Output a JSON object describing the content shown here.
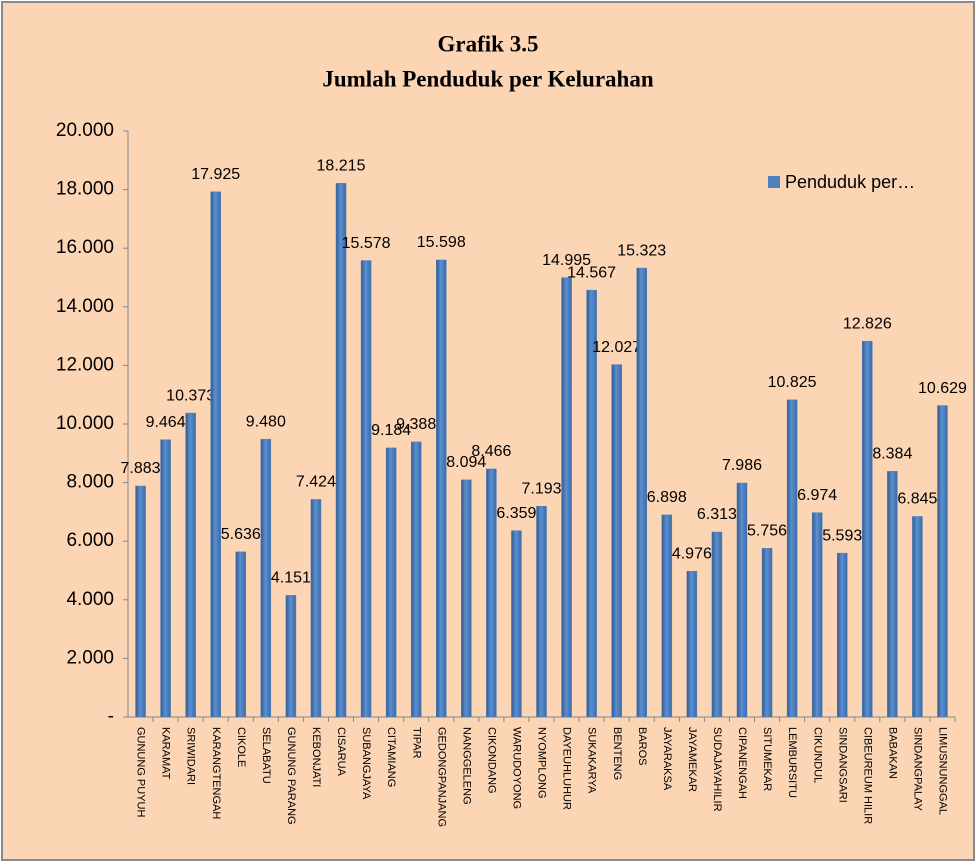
{
  "chart_data": {
    "type": "bar",
    "title": "Grafik 3.5",
    "subtitle": "Jumlah Penduduk per Kelurahan",
    "categories": [
      "GUNUNG PUYUH",
      "KARAMAT",
      "SRIWIDARI",
      "KARANGTENGAH",
      "CIKOLE",
      "SELABATU",
      "GUNUNG PARANG",
      "KEBONJATI",
      "CISARUA",
      "SUBANGJAYA",
      "CITAMIANG",
      "TIPAR",
      "GEDONGPANJANG",
      "NANGGELENG",
      "CIKONDANG",
      "WARUDOYONG",
      "NYOMPLONG",
      "DAYEUHLUHUR",
      "SUKAKARYA",
      "BENTENG",
      "BAROS",
      "JAYARAKSA",
      "JAYAMEKAR",
      "SUDAJAYAHILIR",
      "CIPANENGAH",
      "SITUMEKAR",
      "LEMBURSITU",
      "CIKUNDUL",
      "SINDANGSARI",
      "CIBEUREUM HILIR",
      "BABAKAN",
      "SINDANGPALAY",
      "LIMUSNUNGGAL"
    ],
    "series": [
      {
        "name": "Penduduk per…",
        "color": "#4f81bd",
        "values": [
          7883,
          9464,
          10373,
          17925,
          5636,
          9480,
          4151,
          7424,
          18215,
          15578,
          9184,
          9388,
          15598,
          8094,
          8466,
          6359,
          7193,
          14995,
          14567,
          12027,
          15323,
          6898,
          4976,
          6313,
          7986,
          5756,
          10825,
          6974,
          5593,
          12826,
          8384,
          6845,
          10629
        ],
        "value_labels": [
          "7.883",
          "9.464",
          "10.373",
          "17.925",
          "5.636",
          "9.480",
          "4.151",
          "7.424",
          "18.215",
          "15.578",
          "9.184",
          "9.388",
          "15.598",
          "8.094",
          "8.466",
          "6.359",
          "7.193",
          "14.995",
          "14.567",
          "12.027",
          "15.323",
          "6.898",
          "4.976",
          "6.313",
          "7.986",
          "5.756",
          "10.825",
          "6.974",
          "5.593",
          "12.826",
          "8.384",
          "6.845",
          "10.629"
        ]
      }
    ],
    "ylim": [
      0,
      20000
    ],
    "yticks": [
      {
        "value": 0,
        "label": "-"
      },
      {
        "value": 2000,
        "label": "2.000"
      },
      {
        "value": 4000,
        "label": "4.000"
      },
      {
        "value": 6000,
        "label": "6.000"
      },
      {
        "value": 8000,
        "label": "8.000"
      },
      {
        "value": 10000,
        "label": "10.000"
      },
      {
        "value": 12000,
        "label": "12.000"
      },
      {
        "value": 14000,
        "label": "14.000"
      },
      {
        "value": 16000,
        "label": "16.000"
      },
      {
        "value": 18000,
        "label": "18.000"
      },
      {
        "value": 20000,
        "label": "20.000"
      }
    ],
    "grid": false,
    "legend": "right"
  }
}
